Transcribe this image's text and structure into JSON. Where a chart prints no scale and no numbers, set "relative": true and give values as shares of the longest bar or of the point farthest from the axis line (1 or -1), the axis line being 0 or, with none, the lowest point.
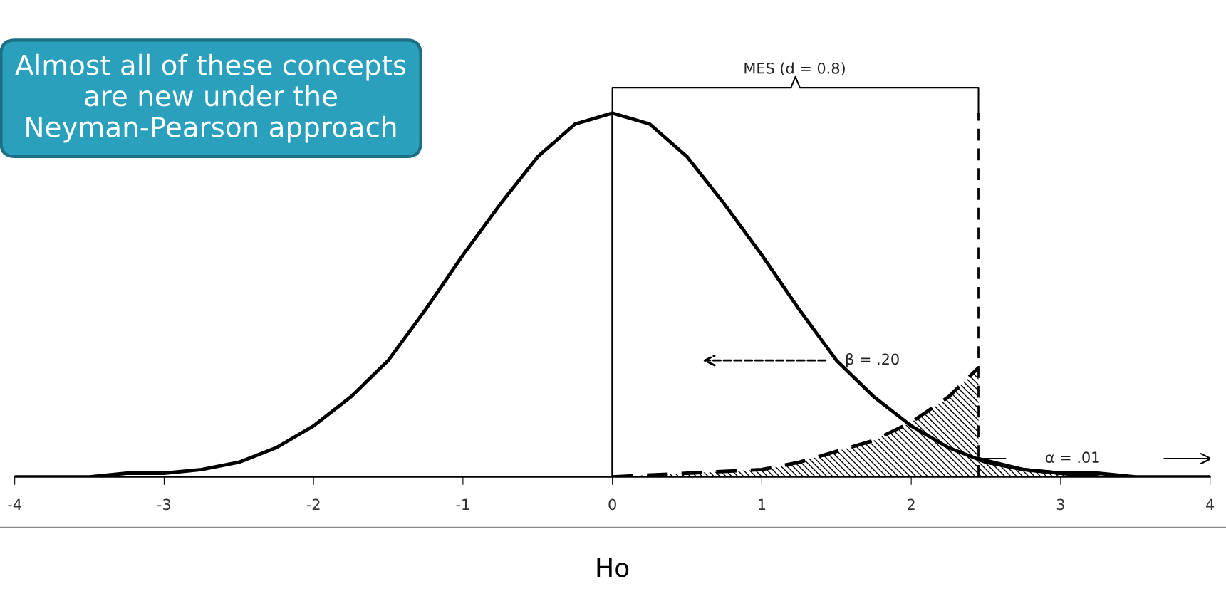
{
  "chart_data": {
    "type": "line",
    "relative": true,
    "xlabel": "Ho",
    "x": [
      -4,
      -3.75,
      -3.5,
      -3.25,
      -3,
      -2.75,
      -2.5,
      -2.25,
      -2,
      -1.75,
      -1.5,
      -1.25,
      -1,
      -0.75,
      -0.5,
      -0.25,
      0,
      0.25,
      0.5,
      0.75,
      1,
      1.25,
      1.5,
      1.75,
      2,
      2.25,
      2.5,
      2.75,
      3,
      3.25,
      3.5,
      3.75,
      4
    ],
    "series": [
      {
        "color": "#000000",
        "line_style": "solid",
        "values": [
          0,
          0,
          0,
          0.01,
          0.01,
          0.02,
          0.04,
          0.08,
          0.14,
          0.22,
          0.32,
          0.46,
          0.61,
          0.75,
          0.88,
          0.97,
          1,
          0.97,
          0.88,
          0.75,
          0.61,
          0.46,
          0.32,
          0.22,
          0.14,
          0.08,
          0.04,
          0.02,
          0.01,
          0.01,
          0,
          0,
          0
        ]
      },
      {
        "type": "area",
        "color": "#000000",
        "line_style": "dashed",
        "x": [
          0,
          0.5,
          1,
          1.25,
          1.5,
          1.75,
          2,
          2.25,
          2.45
        ],
        "values": [
          0,
          0.01,
          0.02,
          0.04,
          0.07,
          0.1,
          0.15,
          0.22,
          0.3
        ]
      },
      {
        "type": "area",
        "color": "#000000",
        "line_style": "solid",
        "x": [
          2.45,
          2.75,
          3,
          3.25
        ],
        "values": [
          0.05,
          0.02,
          0.01,
          0
        ]
      }
    ],
    "xlim": [
      -4,
      4
    ],
    "xticks": [
      -4,
      -3,
      -2,
      -1,
      0,
      1,
      2,
      3,
      4
    ],
    "grid": false,
    "ref_lines": [
      {
        "axis": "x",
        "value": 0,
        "line_style": "solid",
        "color": "#000000"
      },
      {
        "axis": "x",
        "value": 2.45,
        "line_style": "dashed",
        "color": "#000000"
      }
    ],
    "annotations": [
      "Almost all of these concepts are new under the Neyman-Pearson approach",
      "MES (d = 0.8)",
      "β = .20",
      "α = .01"
    ]
  }
}
